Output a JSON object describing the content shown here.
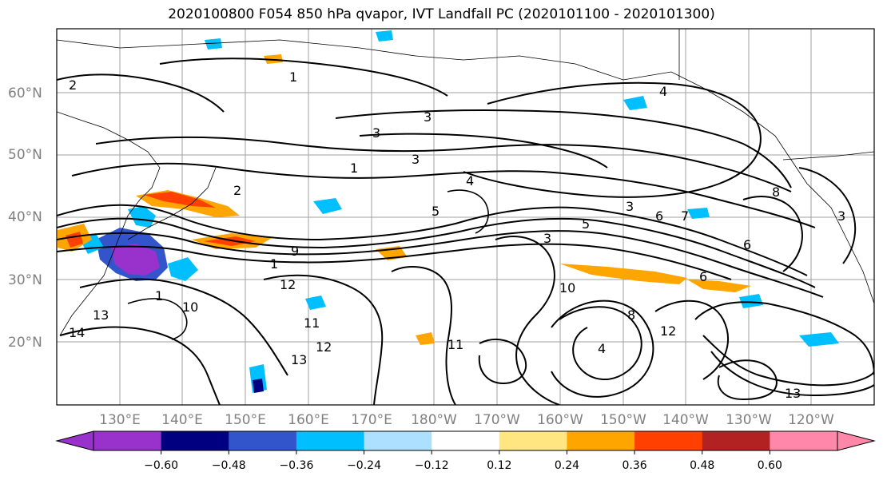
{
  "title": "2020100800 F054 850 hPa qvapor, IVT Landfall PC (2020101100 - 2020101300)",
  "map": {
    "lat_labels": [
      "60°N",
      "50°N",
      "40°N",
      "30°N",
      "20°N"
    ],
    "lon_labels": [
      "130°E",
      "140°E",
      "150°E",
      "160°E",
      "170°E",
      "180°W",
      "170°W",
      "160°W",
      "150°W",
      "140°W",
      "130°W",
      "120°W"
    ],
    "contour_labels": [
      "2",
      "3",
      "3",
      "3",
      "3",
      "4",
      "4",
      "5",
      "5",
      "6",
      "6",
      "7",
      "8",
      "9",
      "10",
      "10",
      "11",
      "11",
      "12",
      "12",
      "12",
      "13",
      "13",
      "13",
      "14",
      "1",
      "1",
      "1",
      "1",
      "2",
      "3",
      "4",
      "8",
      "6",
      "3"
    ]
  },
  "colorbar": {
    "ticks": [
      "−0.60",
      "−0.48",
      "−0.36",
      "−0.24",
      "−0.12",
      "0.12",
      "0.24",
      "0.36",
      "0.48",
      "0.60"
    ],
    "colors": [
      "#9932CC",
      "#000080",
      "#3355CC",
      "#00BFFF",
      "#ADDFFF",
      "#FFFFFF",
      "#FFE680",
      "#FFA500",
      "#FF4000",
      "#B22222",
      "#FF88AA"
    ]
  }
}
